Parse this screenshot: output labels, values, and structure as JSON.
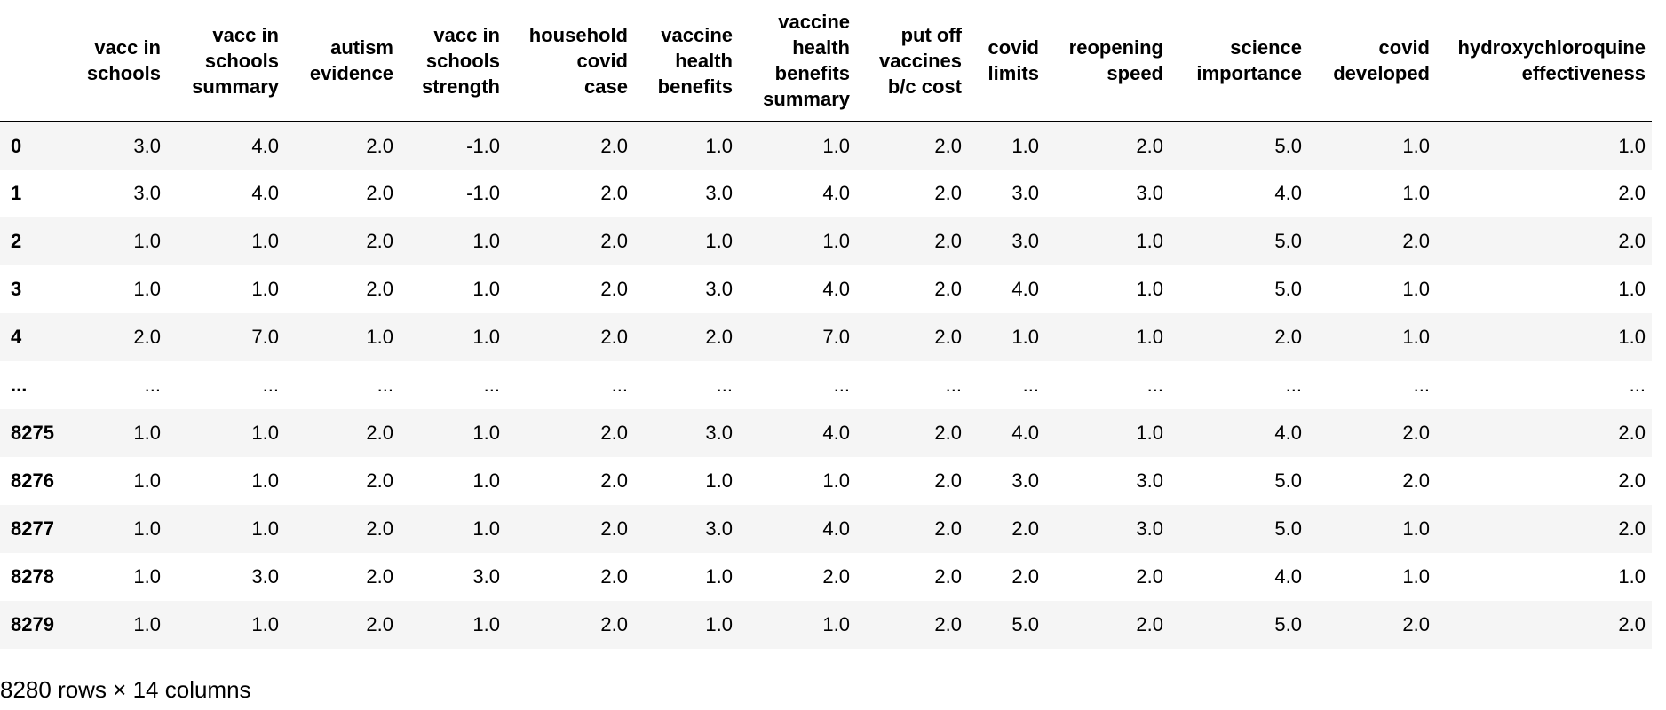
{
  "table": {
    "index_header": "",
    "columns": [
      {
        "key": "vacc-in-schools",
        "lines": [
          "vacc in",
          "schools"
        ]
      },
      {
        "key": "vacc-in-schools-summary",
        "lines": [
          "vacc in",
          "schools",
          "summary"
        ]
      },
      {
        "key": "autism-evidence",
        "lines": [
          "autism",
          "evidence"
        ]
      },
      {
        "key": "vacc-in-schools-strength",
        "lines": [
          "vacc in",
          "schools",
          "strength"
        ]
      },
      {
        "key": "household-covid-case",
        "lines": [
          "household",
          "covid",
          "case"
        ]
      },
      {
        "key": "vaccine-health-benefits",
        "lines": [
          "vaccine",
          "health",
          "benefits"
        ]
      },
      {
        "key": "vaccine-health-benefits-summary",
        "lines": [
          "vaccine",
          "health",
          "benefits",
          "summary"
        ]
      },
      {
        "key": "put-off-vaccines-bc-cost",
        "lines": [
          "put off",
          "vaccines",
          "b/c cost"
        ]
      },
      {
        "key": "covid-limits",
        "lines": [
          "covid",
          "limits"
        ]
      },
      {
        "key": "reopening-speed",
        "lines": [
          "reopening",
          "speed"
        ]
      },
      {
        "key": "science-importance",
        "lines": [
          "science",
          "importance"
        ]
      },
      {
        "key": "covid-developed",
        "lines": [
          "covid",
          "developed"
        ]
      },
      {
        "key": "hydroxychloroquine-effectiveness",
        "lines": [
          "hydroxychloroquine",
          "effectiveness"
        ]
      }
    ],
    "rows": [
      {
        "index": "0",
        "values": [
          "3.0",
          "4.0",
          "2.0",
          "-1.0",
          "2.0",
          "1.0",
          "1.0",
          "2.0",
          "1.0",
          "2.0",
          "5.0",
          "1.0",
          "1.0"
        ]
      },
      {
        "index": "1",
        "values": [
          "3.0",
          "4.0",
          "2.0",
          "-1.0",
          "2.0",
          "3.0",
          "4.0",
          "2.0",
          "3.0",
          "3.0",
          "4.0",
          "1.0",
          "2.0"
        ]
      },
      {
        "index": "2",
        "values": [
          "1.0",
          "1.0",
          "2.0",
          "1.0",
          "2.0",
          "1.0",
          "1.0",
          "2.0",
          "3.0",
          "1.0",
          "5.0",
          "2.0",
          "2.0"
        ]
      },
      {
        "index": "3",
        "values": [
          "1.0",
          "1.0",
          "2.0",
          "1.0",
          "2.0",
          "3.0",
          "4.0",
          "2.0",
          "4.0",
          "1.0",
          "5.0",
          "1.0",
          "1.0"
        ]
      },
      {
        "index": "4",
        "values": [
          "2.0",
          "7.0",
          "1.0",
          "1.0",
          "2.0",
          "2.0",
          "7.0",
          "2.0",
          "1.0",
          "1.0",
          "2.0",
          "1.0",
          "1.0"
        ]
      },
      {
        "index": "...",
        "values": [
          "...",
          "...",
          "...",
          "...",
          "...",
          "...",
          "...",
          "...",
          "...",
          "...",
          "...",
          "...",
          "..."
        ]
      },
      {
        "index": "8275",
        "values": [
          "1.0",
          "1.0",
          "2.0",
          "1.0",
          "2.0",
          "3.0",
          "4.0",
          "2.0",
          "4.0",
          "1.0",
          "4.0",
          "2.0",
          "2.0"
        ]
      },
      {
        "index": "8276",
        "values": [
          "1.0",
          "1.0",
          "2.0",
          "1.0",
          "2.0",
          "1.0",
          "1.0",
          "2.0",
          "3.0",
          "3.0",
          "5.0",
          "2.0",
          "2.0"
        ]
      },
      {
        "index": "8277",
        "values": [
          "1.0",
          "1.0",
          "2.0",
          "1.0",
          "2.0",
          "3.0",
          "4.0",
          "2.0",
          "2.0",
          "3.0",
          "5.0",
          "1.0",
          "2.0"
        ]
      },
      {
        "index": "8278",
        "values": [
          "1.0",
          "3.0",
          "2.0",
          "3.0",
          "2.0",
          "1.0",
          "2.0",
          "2.0",
          "2.0",
          "2.0",
          "4.0",
          "1.0",
          "1.0"
        ]
      },
      {
        "index": "8279",
        "values": [
          "1.0",
          "1.0",
          "2.0",
          "1.0",
          "2.0",
          "1.0",
          "1.0",
          "2.0",
          "5.0",
          "2.0",
          "5.0",
          "2.0",
          "2.0"
        ]
      }
    ]
  },
  "footer": {
    "shape_text": "8280 rows × 14 columns"
  },
  "colors": {
    "row_stripe": "#f5f5f5",
    "header_rule": "#000000",
    "text": "#000000"
  }
}
